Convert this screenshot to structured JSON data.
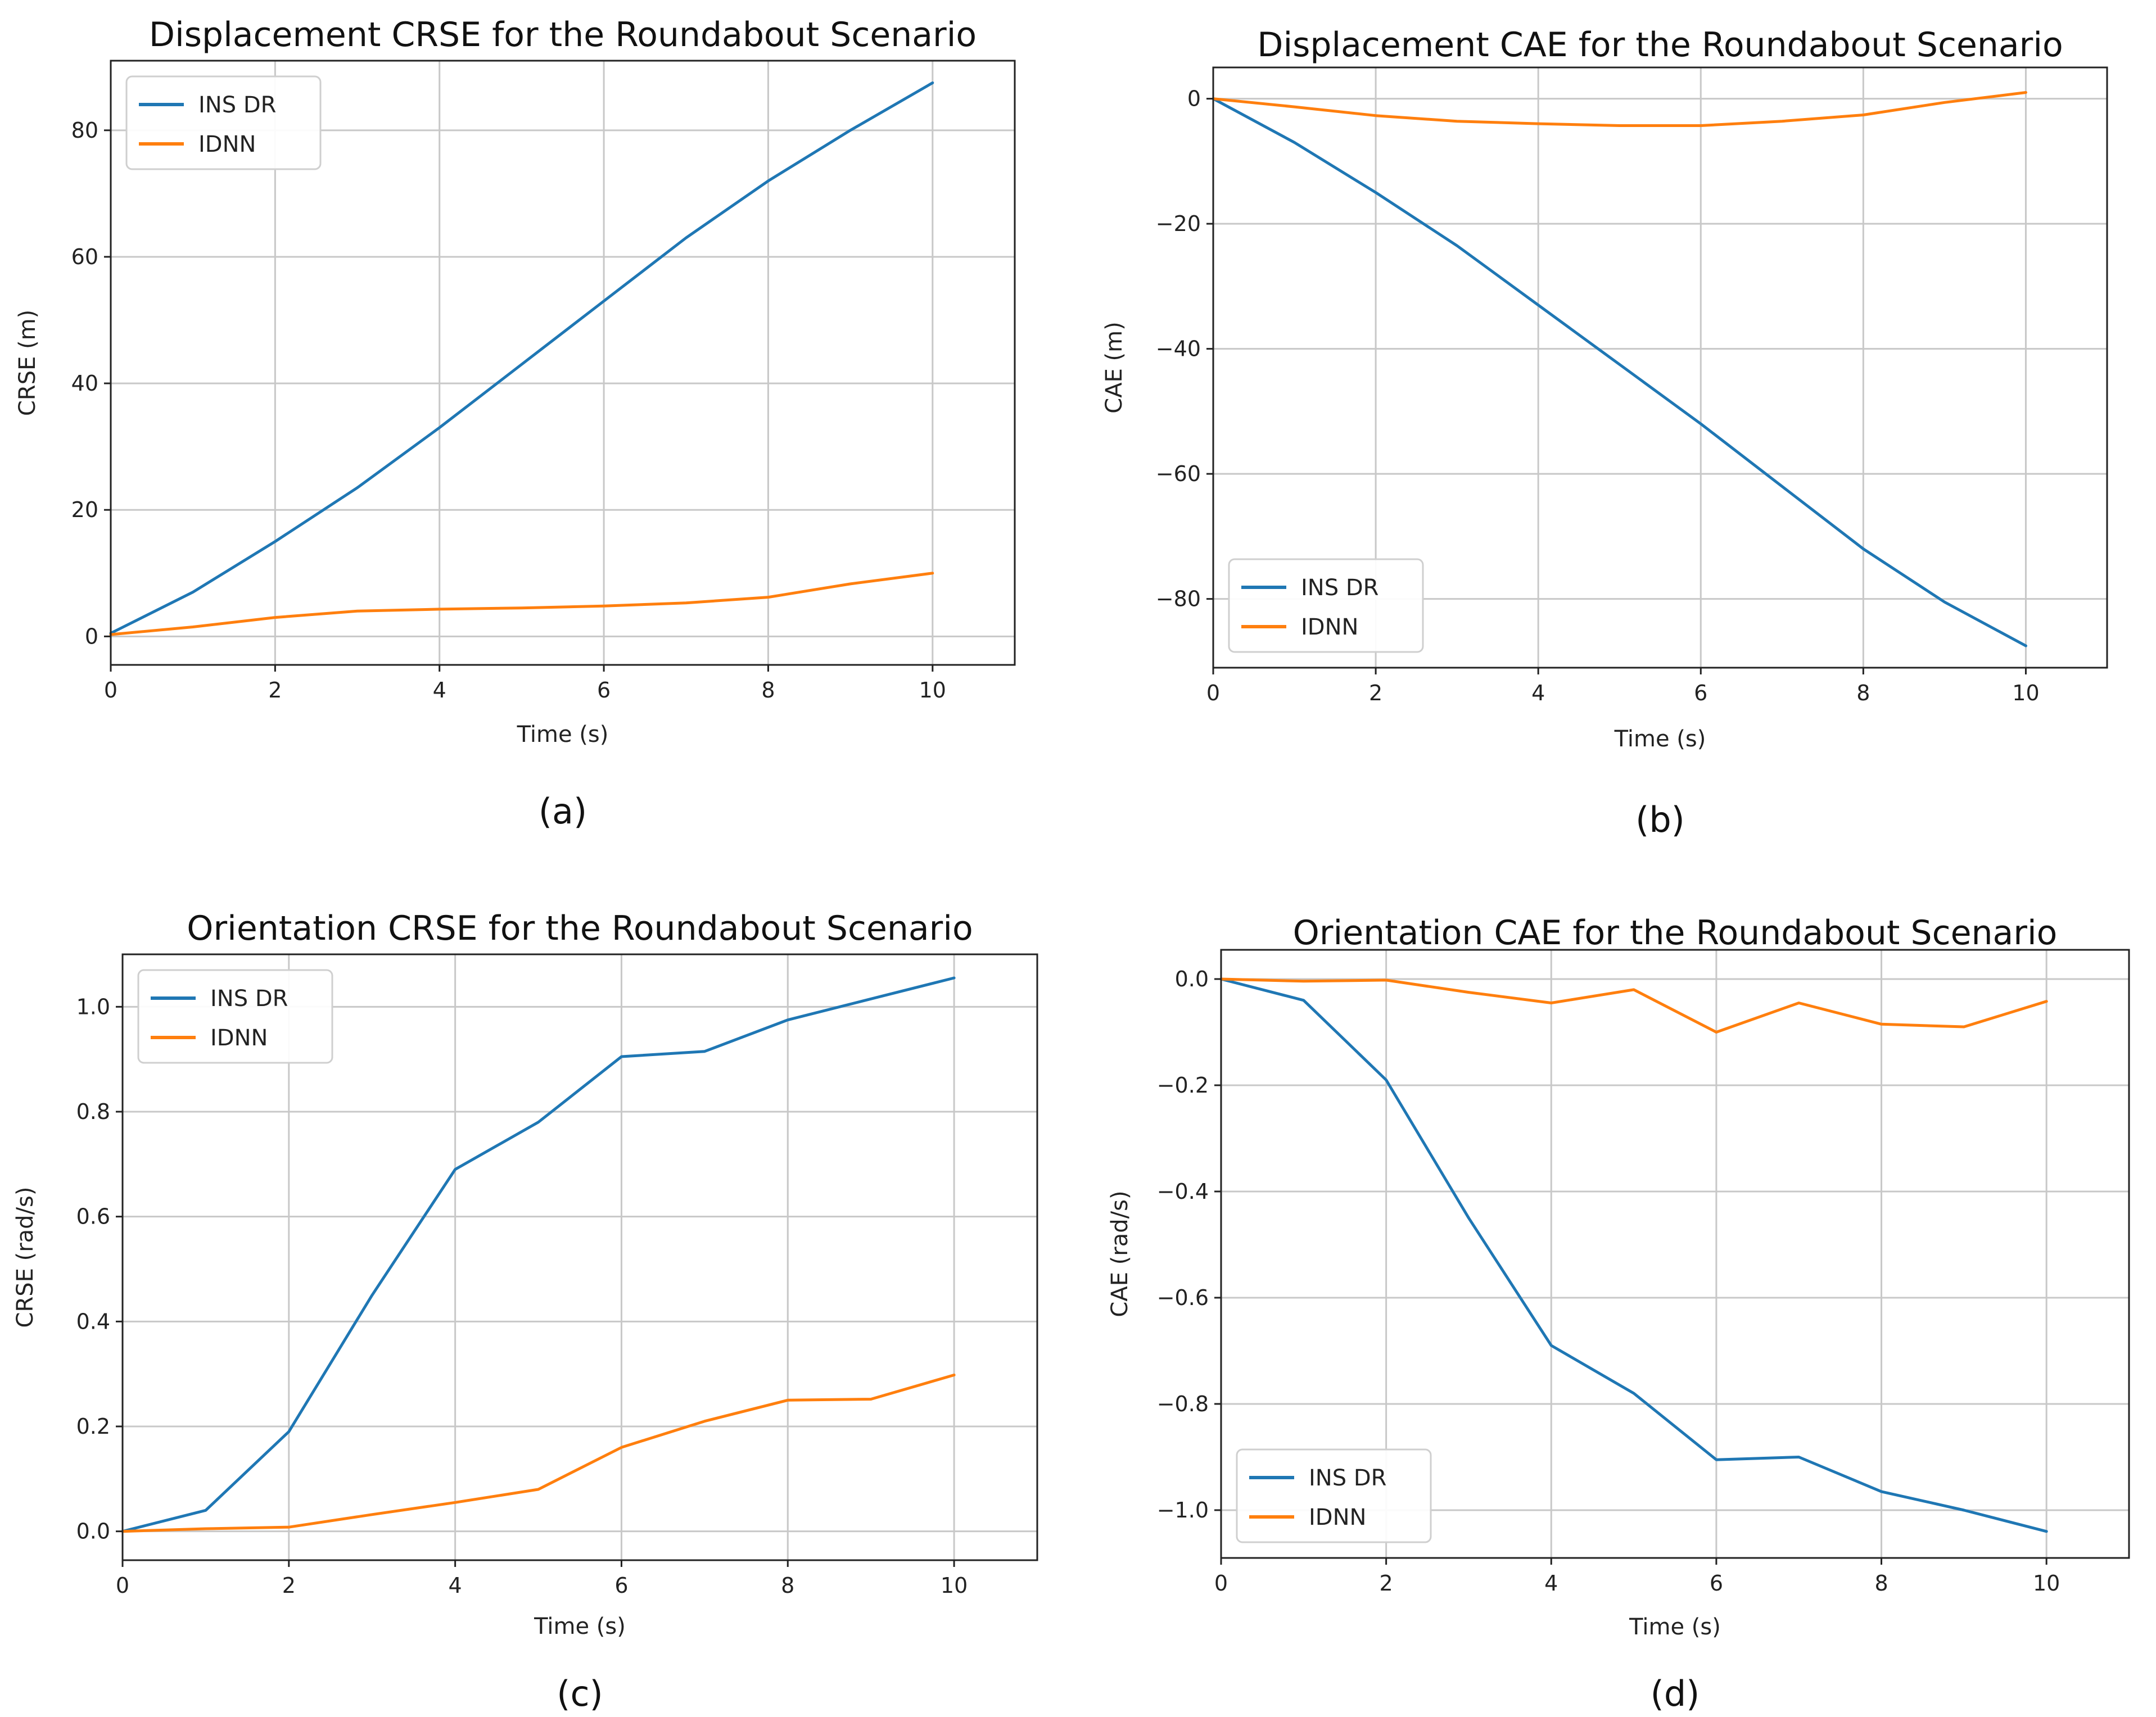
{
  "colors": {
    "ins_dr": "#1f77b4",
    "idnn": "#ff7f0e"
  },
  "chart_data": [
    {
      "id": "a",
      "type": "line",
      "title": "Displacement CRSE for the Roundabout Scenario",
      "xlabel": "Time (s)",
      "ylabel": "CRSE (m)",
      "caption": "(a)",
      "xlim": [
        0,
        11
      ],
      "ylim": [
        -4.5,
        91
      ],
      "xticks": [
        0,
        2,
        4,
        6,
        8,
        10
      ],
      "yticks": [
        0,
        20,
        40,
        60,
        80
      ],
      "ytick_labels": [
        "0",
        "20",
        "40",
        "60",
        "80"
      ],
      "legend_position": "upper-left",
      "x": [
        0,
        1,
        2,
        3,
        4,
        5,
        6,
        7,
        8,
        9,
        10
      ],
      "series": [
        {
          "name": "INS DR",
          "color_key": "ins_dr",
          "values": [
            0.5,
            7,
            15,
            23.5,
            33,
            43,
            53,
            63,
            72,
            80,
            87.5
          ]
        },
        {
          "name": "IDNN",
          "color_key": "idnn",
          "values": [
            0.3,
            1.5,
            3.0,
            4.0,
            4.3,
            4.5,
            4.8,
            5.3,
            6.2,
            8.3,
            10.0
          ]
        }
      ]
    },
    {
      "id": "b",
      "type": "line",
      "title": "Displacement CAE for the Roundabout Scenario",
      "xlabel": "Time (s)",
      "ylabel": "CAE (m)",
      "caption": "(b)",
      "xlim": [
        0,
        11
      ],
      "ylim": [
        -91,
        5
      ],
      "xticks": [
        0,
        2,
        4,
        6,
        8,
        10
      ],
      "yticks": [
        0,
        -20,
        -40,
        -60,
        -80
      ],
      "ytick_labels": [
        "0",
        "−20",
        "−40",
        "−60",
        "−80"
      ],
      "legend_position": "lower-left",
      "x": [
        0,
        1,
        2,
        3,
        4,
        5,
        6,
        7,
        8,
        9,
        10
      ],
      "series": [
        {
          "name": "INS DR",
          "color_key": "ins_dr",
          "values": [
            0,
            -7,
            -15,
            -23.5,
            -33,
            -42.5,
            -52,
            -62,
            -72,
            -80.5,
            -87.5
          ]
        },
        {
          "name": "IDNN",
          "color_key": "idnn",
          "values": [
            0,
            -1.3,
            -2.7,
            -3.6,
            -4.0,
            -4.3,
            -4.3,
            -3.6,
            -2.6,
            -0.6,
            1.0
          ]
        }
      ]
    },
    {
      "id": "c",
      "type": "line",
      "title": "Orientation CRSE for the Roundabout Scenario",
      "xlabel": "Time (s)",
      "ylabel": "CRSE (rad/s)",
      "caption": "(c)",
      "xlim": [
        0,
        11
      ],
      "ylim": [
        -0.055,
        1.1
      ],
      "xticks": [
        0,
        2,
        4,
        6,
        8,
        10
      ],
      "yticks": [
        0.0,
        0.2,
        0.4,
        0.6,
        0.8,
        1.0
      ],
      "ytick_labels": [
        "0.0",
        "0.2",
        "0.4",
        "0.6",
        "0.8",
        "1.0"
      ],
      "legend_position": "upper-left",
      "x": [
        0,
        1,
        2,
        3,
        4,
        5,
        6,
        7,
        8,
        9,
        10
      ],
      "series": [
        {
          "name": "INS DR",
          "color_key": "ins_dr",
          "values": [
            0.0,
            0.04,
            0.19,
            0.45,
            0.69,
            0.78,
            0.905,
            0.915,
            0.975,
            1.015,
            1.055
          ]
        },
        {
          "name": "IDNN",
          "color_key": "idnn",
          "values": [
            0.0,
            0.005,
            0.008,
            0.032,
            0.055,
            0.08,
            0.16,
            0.21,
            0.25,
            0.252,
            0.298
          ]
        }
      ]
    },
    {
      "id": "d",
      "type": "line",
      "title": "Orientation CAE for the Roundabout Scenario",
      "xlabel": "Time (s)",
      "ylabel": "CAE (rad/s)",
      "caption": "(d)",
      "xlim": [
        0,
        11
      ],
      "ylim": [
        -1.09,
        0.055
      ],
      "xticks": [
        0,
        2,
        4,
        6,
        8,
        10
      ],
      "yticks": [
        0.0,
        -0.2,
        -0.4,
        -0.6,
        -0.8,
        -1.0
      ],
      "ytick_labels": [
        "0.0",
        "−0.2",
        "−0.4",
        "−0.6",
        "−0.8",
        "−1.0"
      ],
      "legend_position": "lower-left",
      "x": [
        0,
        1,
        2,
        3,
        4,
        5,
        6,
        7,
        8,
        9,
        10
      ],
      "series": [
        {
          "name": "INS DR",
          "color_key": "ins_dr",
          "values": [
            0.0,
            -0.04,
            -0.19,
            -0.45,
            -0.69,
            -0.78,
            -0.905,
            -0.9,
            -0.965,
            -1.0,
            -1.04
          ]
        },
        {
          "name": "IDNN",
          "color_key": "idnn",
          "values": [
            0.0,
            -0.004,
            -0.002,
            -0.025,
            -0.045,
            -0.02,
            -0.1,
            -0.045,
            -0.085,
            -0.09,
            -0.042
          ]
        }
      ]
    }
  ]
}
